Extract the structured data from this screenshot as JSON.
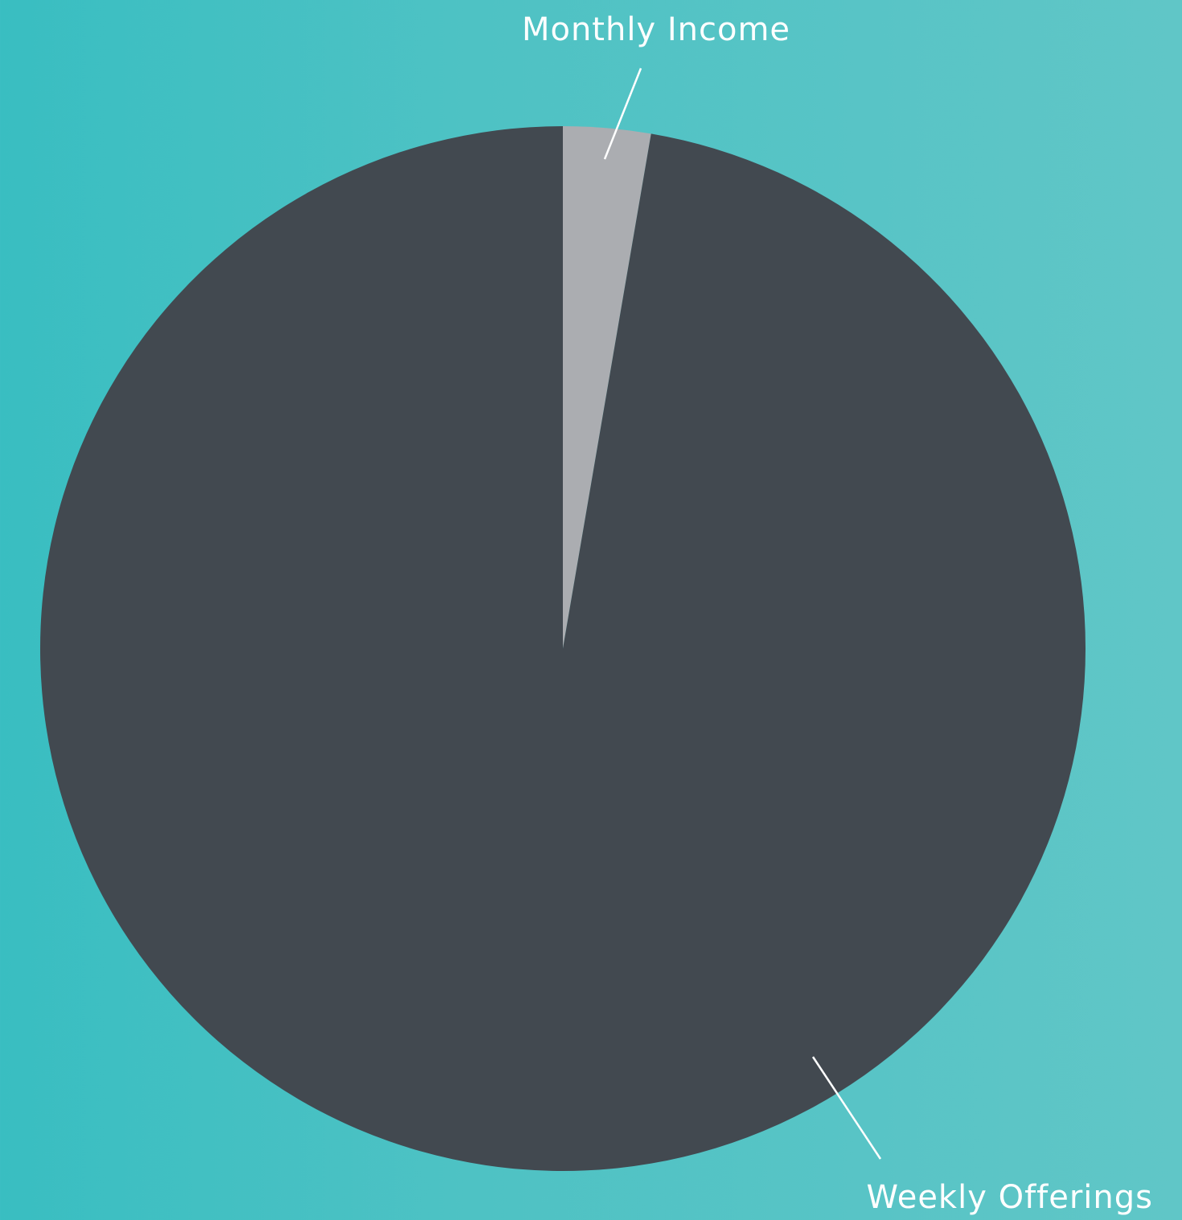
{
  "chart_data": {
    "type": "pie",
    "title": "",
    "slices": [
      {
        "label": "Monthly Income",
        "value": 2.7,
        "color": "#abadb1"
      },
      {
        "label": "Weekly Offerings",
        "value": 97.3,
        "color": "#424950"
      }
    ],
    "legend": "none",
    "label_color": "#ffffff"
  }
}
